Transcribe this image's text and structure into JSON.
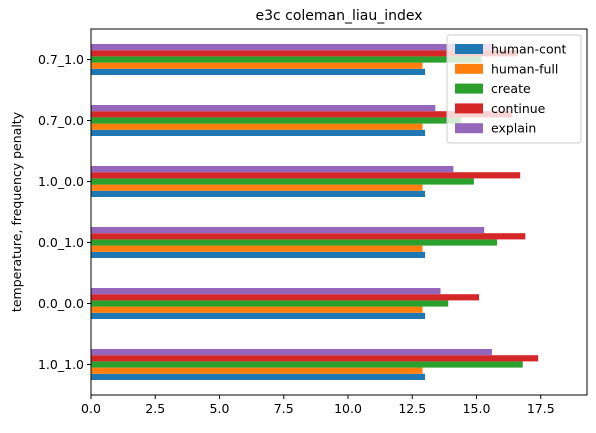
{
  "chart_data": {
    "type": "bar",
    "orientation": "horizontal",
    "title": "e3c coleman_liau_index",
    "xlabel": "",
    "ylabel": "temperature, frequency penalty",
    "xlim": [
      0,
      19.3
    ],
    "xticks": [
      "0.0",
      "2.5",
      "5.0",
      "7.5",
      "10.0",
      "12.5",
      "15.0",
      "17.5"
    ],
    "xtick_values": [
      0,
      2.5,
      5,
      7.5,
      10,
      12.5,
      15,
      17.5
    ],
    "categories": [
      "1.0_1.0",
      "0.0_0.0",
      "0.0_1.0",
      "1.0_0.0",
      "0.7_0.0",
      "0.7_1.0"
    ],
    "series": [
      {
        "name": "human-cont",
        "color": "#1f77b4",
        "values": [
          13.0,
          13.0,
          13.0,
          13.0,
          13.0,
          13.0
        ]
      },
      {
        "name": "human-full",
        "color": "#ff7f0e",
        "values": [
          12.9,
          12.9,
          12.9,
          12.9,
          12.9,
          12.9
        ]
      },
      {
        "name": "create",
        "color": "#2ca02c",
        "values": [
          16.8,
          13.9,
          15.8,
          14.9,
          14.4,
          15.2
        ]
      },
      {
        "name": "continue",
        "color": "#d62728",
        "values": [
          17.4,
          15.1,
          16.9,
          16.7,
          16.4,
          16.6
        ]
      },
      {
        "name": "explain",
        "color": "#9467bd",
        "values": [
          15.6,
          13.6,
          15.3,
          14.1,
          13.4,
          15.7
        ]
      }
    ],
    "legend_position": "top-right",
    "grid": false
  }
}
